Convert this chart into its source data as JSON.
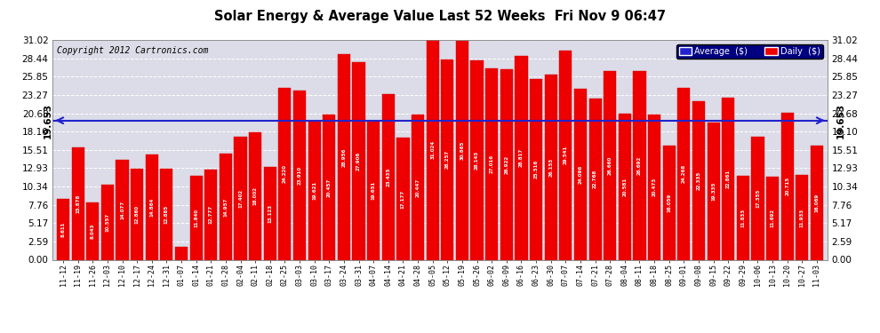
{
  "title": "Solar Energy & Average Value Last 52 Weeks  Fri Nov 9 06:47",
  "copyright": "Copyright 2012 Cartronics.com",
  "average_line": 19.653,
  "average_label": "19.653",
  "bar_color": "#ee0000",
  "average_line_color": "#2222cc",
  "background_color": "#ffffff",
  "plot_bg_color": "#dcdce8",
  "yticks": [
    0.0,
    2.59,
    5.17,
    7.76,
    10.34,
    12.93,
    15.51,
    18.1,
    20.68,
    23.27,
    25.85,
    28.44,
    31.02
  ],
  "legend_avg_color": "#2222cc",
  "legend_daily_color": "#ee0000",
  "categories": [
    "11-12",
    "11-19",
    "11-26",
    "12-03",
    "12-10",
    "12-17",
    "12-24",
    "12-31",
    "01-07",
    "01-14",
    "01-21",
    "01-28",
    "02-04",
    "02-11",
    "02-18",
    "02-25",
    "03-03",
    "03-10",
    "03-17",
    "03-24",
    "03-31",
    "04-07",
    "04-14",
    "04-21",
    "04-28",
    "05-05",
    "05-12",
    "05-19",
    "05-26",
    "06-02",
    "06-09",
    "06-16",
    "06-23",
    "06-30",
    "07-07",
    "07-14",
    "07-21",
    "07-28",
    "08-04",
    "08-11",
    "08-18",
    "08-25",
    "09-01",
    "09-08",
    "09-15",
    "09-22",
    "09-29",
    "10-06",
    "10-13",
    "10-20",
    "10-27",
    "11-03"
  ],
  "values": [
    8.611,
    15.878,
    8.043,
    10.557,
    14.077,
    12.86,
    14.864,
    12.885,
    1.802,
    11.84,
    12.777,
    14.957,
    17.402,
    18.002,
    13.123,
    24.22,
    23.91,
    19.621,
    20.457,
    28.956,
    27.906,
    19.651,
    23.435,
    17.177,
    20.447,
    31.024,
    28.257,
    30.865,
    28.143,
    27.016,
    26.922,
    28.817,
    25.516,
    26.153,
    29.541,
    24.096,
    22.768,
    26.66,
    20.581,
    26.692,
    20.473,
    16.059,
    24.268,
    22.335,
    19.335,
    22.861,
    11.833,
    17.355,
    11.692,
    20.715,
    11.933,
    16.069
  ]
}
